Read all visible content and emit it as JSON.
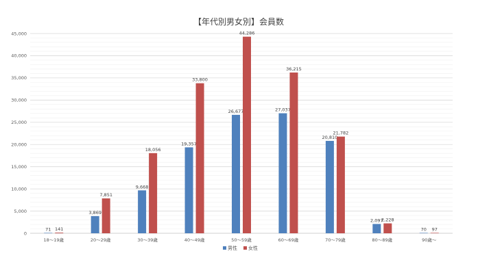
{
  "chart_data": {
    "type": "bar",
    "title": "【年代別男女別】会員数",
    "categories": [
      "18～19歳",
      "20～29歳",
      "30～39歳",
      "40～49歳",
      "50～59歳",
      "60～69歳",
      "70～79歳",
      "80～89歳",
      "90歳～"
    ],
    "series": [
      {
        "name": "男性",
        "color": "#4f81bd",
        "values": [
          71,
          3869,
          9668,
          19357,
          26677,
          27037,
          20810,
          2097,
          70
        ],
        "labels": [
          "71",
          "3,869",
          "9,668",
          "19,357",
          "26,677",
          "27,037",
          "20,810",
          "2,097",
          "70"
        ]
      },
      {
        "name": "女性",
        "color": "#c0504d",
        "values": [
          141,
          7851,
          18056,
          33800,
          44286,
          36215,
          21782,
          2228,
          97
        ],
        "labels": [
          "141",
          "7,851",
          "18,056",
          "33,800",
          "44,286",
          "36,215",
          "21,782",
          "2,228",
          "97"
        ]
      }
    ],
    "yticks": [
      "0",
      "5,000",
      "10,000",
      "15,000",
      "20,000",
      "25,000",
      "30,000",
      "35,000",
      "40,000",
      "45,000"
    ],
    "ylim": [
      0,
      45000
    ],
    "grid": true,
    "legend_position": "bottom"
  }
}
